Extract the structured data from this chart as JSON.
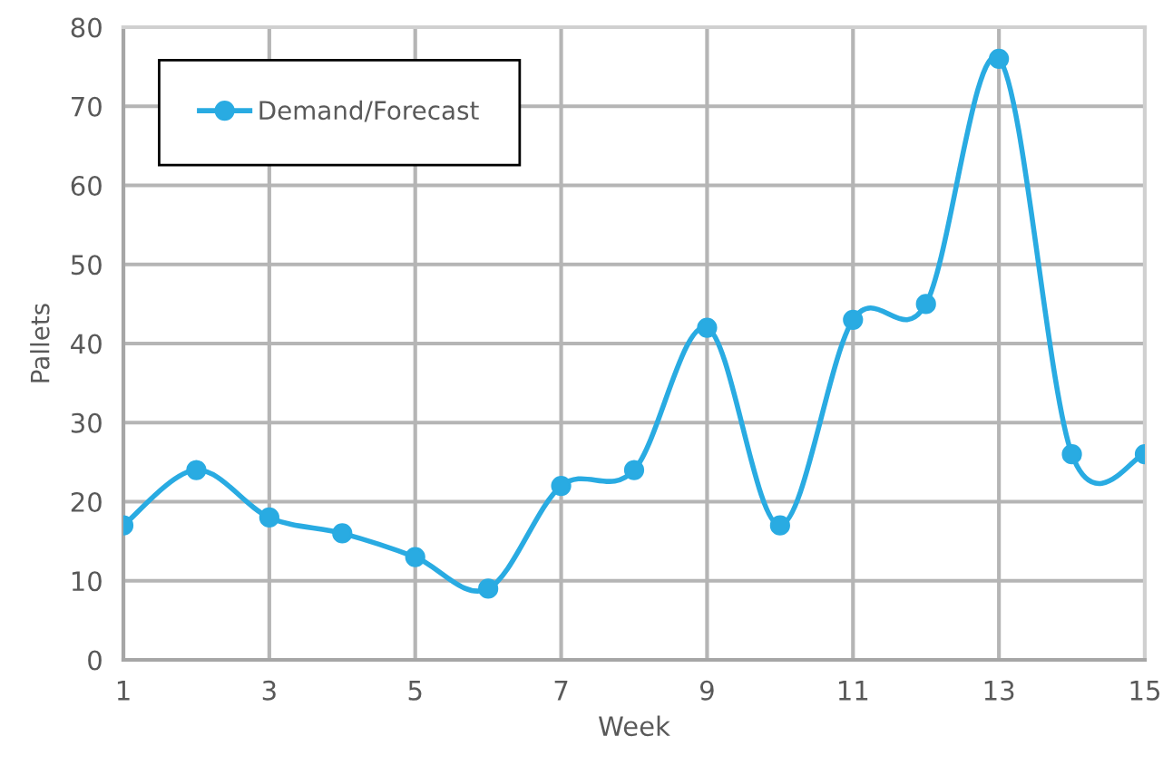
{
  "chart_data": {
    "type": "line",
    "xlabel": "Week",
    "ylabel": "Pallets",
    "x": [
      1,
      2,
      3,
      4,
      5,
      6,
      7,
      8,
      9,
      10,
      11,
      12,
      13,
      14,
      15
    ],
    "series": [
      {
        "name": "Demand/Forecast",
        "color": "#29abe2",
        "values": [
          17,
          24,
          18,
          16,
          13,
          9,
          22,
          24,
          42,
          17,
          43,
          45,
          76,
          26,
          26
        ]
      }
    ],
    "xlim": [
      1,
      15
    ],
    "xticks": [
      1,
      3,
      5,
      7,
      9,
      11,
      13,
      15
    ],
    "ylim": [
      0,
      80
    ],
    "yticks": [
      0,
      10,
      20,
      30,
      40,
      50,
      60,
      70,
      80
    ],
    "grid": true,
    "legend": "top left",
    "marker": "circle",
    "line_style": "solid"
  }
}
